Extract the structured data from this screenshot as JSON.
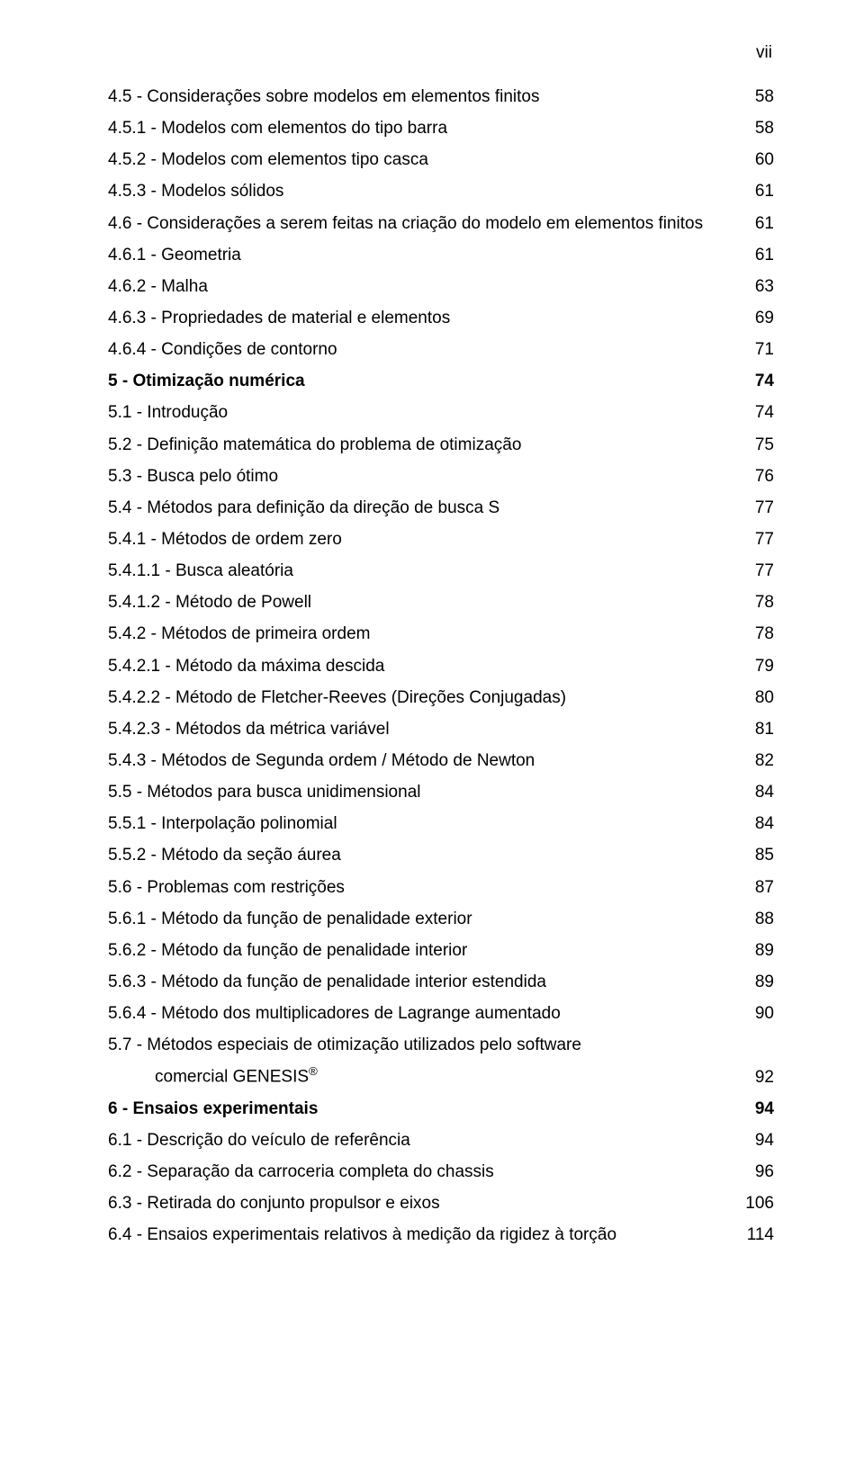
{
  "page_number_label": "vii",
  "font": {
    "family": "Arial",
    "body_size_pt": 14,
    "line_height": 1.85,
    "color": "#000000",
    "background": "#ffffff"
  },
  "toc": [
    {
      "title": "4.5 - Considerações sobre modelos em elementos finitos",
      "page": "58",
      "bold": false,
      "indent": 0
    },
    {
      "title": "4.5.1 - Modelos com elementos do tipo barra",
      "page": "58",
      "bold": false,
      "indent": 0
    },
    {
      "title": "4.5.2 - Modelos com elementos tipo casca",
      "page": "60",
      "bold": false,
      "indent": 0
    },
    {
      "title": "4.5.3 - Modelos sólidos",
      "page": "61",
      "bold": false,
      "indent": 0
    },
    {
      "title": "4.6 - Considerações a serem feitas na criação do modelo em elementos finitos",
      "page": "61",
      "bold": false,
      "indent": 0
    },
    {
      "title": "4.6.1 - Geometria",
      "page": "61",
      "bold": false,
      "indent": 0
    },
    {
      "title": "4.6.2 - Malha",
      "page": "63",
      "bold": false,
      "indent": 0
    },
    {
      "title": "4.6.3 - Propriedades de material e elementos",
      "page": "69",
      "bold": false,
      "indent": 0
    },
    {
      "title": "4.6.4 - Condições de contorno",
      "page": "71",
      "bold": false,
      "indent": 0
    },
    {
      "title": "5 - Otimização numérica",
      "page": "74",
      "bold": true,
      "indent": 0
    },
    {
      "title": "5.1 - Introdução",
      "page": "74",
      "bold": false,
      "indent": 0
    },
    {
      "title": "5.2 - Definição matemática do problema de otimização",
      "page": "75",
      "bold": false,
      "indent": 0
    },
    {
      "title": "5.3 - Busca pelo ótimo",
      "page": "76",
      "bold": false,
      "indent": 0
    },
    {
      "title": "5.4 - Métodos para definição da direção de busca S",
      "page": "77",
      "bold": false,
      "indent": 0
    },
    {
      "title": "5.4.1 - Métodos de ordem zero",
      "page": "77",
      "bold": false,
      "indent": 0
    },
    {
      "title": "5.4.1.1 - Busca aleatória",
      "page": "77",
      "bold": false,
      "indent": 0
    },
    {
      "title": "5.4.1.2 - Método de Powell",
      "page": "78",
      "bold": false,
      "indent": 0
    },
    {
      "title": "5.4.2 - Métodos de primeira ordem",
      "page": "78",
      "bold": false,
      "indent": 0
    },
    {
      "title": "5.4.2.1 - Método da máxima descida",
      "page": "79",
      "bold": false,
      "indent": 0
    },
    {
      "title": "5.4.2.2 - Método de Fletcher-Reeves (Direções Conjugadas)",
      "page": "80",
      "bold": false,
      "indent": 0
    },
    {
      "title": "5.4.2.3 - Métodos da métrica variável",
      "page": "81",
      "bold": false,
      "indent": 0
    },
    {
      "title": "5.4.3 - Métodos de Segunda ordem / Método de Newton",
      "page": "82",
      "bold": false,
      "indent": 0
    },
    {
      "title": "5.5 - Métodos para busca unidimensional",
      "page": "84",
      "bold": false,
      "indent": 0
    },
    {
      "title": "5.5.1 - Interpolação polinomial",
      "page": "84",
      "bold": false,
      "indent": 0
    },
    {
      "title": "5.5.2 - Método da seção áurea",
      "page": "85",
      "bold": false,
      "indent": 0
    },
    {
      "title": "5.6 - Problemas com restrições",
      "page": "87",
      "bold": false,
      "indent": 0
    },
    {
      "title": "5.6.1 - Método da função de penalidade exterior",
      "page": "88",
      "bold": false,
      "indent": 0
    },
    {
      "title": "5.6.2 - Método da função de penalidade interior",
      "page": "89",
      "bold": false,
      "indent": 0
    },
    {
      "title": "5.6.3 - Método da função de penalidade interior estendida",
      "page": "89",
      "bold": false,
      "indent": 0
    },
    {
      "title": "5.6.4 - Método dos multiplicadores de Lagrange aumentado",
      "page": "90",
      "bold": false,
      "indent": 0
    },
    {
      "title": "5.7 - Métodos especiais de otimização utilizados pelo software",
      "page": "",
      "bold": false,
      "indent": 0
    },
    {
      "title_prefix": "comercial GENESIS",
      "title_sup": "®",
      "page": "92",
      "bold": false,
      "indent": 1
    },
    {
      "title": "6 - Ensaios experimentais",
      "page": "94",
      "bold": true,
      "indent": 0
    },
    {
      "title": "6.1 - Descrição do veículo de referência",
      "page": "94",
      "bold": false,
      "indent": 0
    },
    {
      "title": "6.2 - Separação da carroceria completa do chassis",
      "page": "96",
      "bold": false,
      "indent": 0
    },
    {
      "title": "6.3 - Retirada do conjunto propulsor e eixos",
      "page": "106",
      "bold": false,
      "indent": 0
    },
    {
      "title": "6.4 - Ensaios experimentais relativos à medição da rigidez à torção",
      "page": "114",
      "bold": false,
      "indent": 0
    }
  ]
}
